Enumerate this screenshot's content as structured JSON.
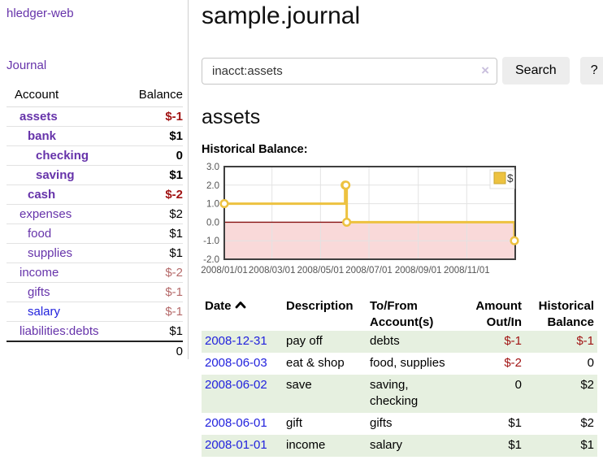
{
  "colors": {
    "link_purple": "#6633aa",
    "link_blue": "#2222dd",
    "negative_red": "#a11414",
    "negative_muted": "#b56a6a",
    "row_green": "#e6f0e0",
    "series_gold": "#edc240",
    "negative_area_pink": "#f9d9d9",
    "zero_line_red": "#871111"
  },
  "app": {
    "title": "hledger-web"
  },
  "nav": {
    "journal": "Journal"
  },
  "sidebar": {
    "headers": {
      "account": "Account",
      "balance": "Balance"
    },
    "accounts": [
      {
        "name": "assets",
        "depth": 0,
        "bold": true,
        "balance": "$-1",
        "balance_class": "neg"
      },
      {
        "name": "bank",
        "depth": 1,
        "bold": true,
        "balance": "$1",
        "balance_class": ""
      },
      {
        "name": "checking",
        "depth": 2,
        "bold": true,
        "balance": "0",
        "balance_class": ""
      },
      {
        "name": "saving",
        "depth": 2,
        "bold": true,
        "balance": "$1",
        "balance_class": ""
      },
      {
        "name": "cash",
        "depth": 1,
        "bold": true,
        "balance": "$-2",
        "balance_class": "neg"
      },
      {
        "name": "expenses",
        "depth": 0,
        "bold": false,
        "balance": "$2",
        "balance_class": ""
      },
      {
        "name": "food",
        "depth": 1,
        "bold": false,
        "balance": "$1",
        "balance_class": ""
      },
      {
        "name": "supplies",
        "depth": 1,
        "bold": false,
        "balance": "$1",
        "balance_class": ""
      },
      {
        "name": "income",
        "depth": 0,
        "bold": false,
        "balance": "$-2",
        "balance_class": "negmuted"
      },
      {
        "name": "gifts",
        "depth": 1,
        "bold": false,
        "balance": "$-1",
        "balance_class": "negmuted"
      },
      {
        "name": "salary",
        "depth": 1,
        "bold": false,
        "link": "blue",
        "balance": "$-1",
        "balance_class": "negmuted"
      },
      {
        "name": "liabilities:debts",
        "depth": 0,
        "bold": false,
        "balance": "$1",
        "balance_class": ""
      }
    ],
    "total": "0"
  },
  "header": {
    "title": "sample.journal"
  },
  "search": {
    "value": "inacct:assets",
    "clear_icon": "×",
    "button_label": "Search",
    "help_label": "?"
  },
  "account": {
    "title": "assets",
    "chart_label": "Historical Balance:"
  },
  "chart_data": {
    "type": "line",
    "style": "steps",
    "title": "Historical Balance:",
    "x_range": [
      "2008-01-01",
      "2009-01-01"
    ],
    "y_range": [
      -2,
      3
    ],
    "y_ticks": [
      3.0,
      2.0,
      1.0,
      0.0,
      -1.0,
      -2.0
    ],
    "x_tick_dates": [
      "2008-01-01",
      "2008-03-01",
      "2008-05-01",
      "2008-07-01",
      "2008-09-01",
      "2008-11-01"
    ],
    "x_tick_labels": [
      "2008/01/01",
      "2008/03/01",
      "2008/05/01",
      "2008/07/01",
      "2008/09/01",
      "2008/11/01"
    ],
    "grid": true,
    "legend": {
      "label": "$",
      "position": "top-right"
    },
    "series": [
      {
        "name": "$",
        "color": "#edc240",
        "marker_fill": "#ffffff",
        "points": [
          [
            "2008-01-01",
            1
          ],
          [
            "2008-06-01",
            2
          ],
          [
            "2008-06-02",
            2
          ],
          [
            "2008-06-03",
            0
          ],
          [
            "2008-12-31",
            -1
          ]
        ]
      }
    ],
    "negative_region": {
      "from": 0,
      "to": -2,
      "fill": "#f9d9d9",
      "line_color": "#871111"
    }
  },
  "register": {
    "headers": {
      "date": "Date",
      "description": "Description",
      "accounts": "To/From Account(s)",
      "amount": "Amount Out/In",
      "balance": "Historical Balance"
    },
    "rows": [
      {
        "date": "2008-12-31",
        "description": "pay off",
        "accounts": "debts",
        "amount": "$-1",
        "amount_class": "neg",
        "balance": "$-1",
        "balance_class": "neg"
      },
      {
        "date": "2008-06-03",
        "description": "eat & shop",
        "accounts": "food, supplies",
        "amount": "$-2",
        "amount_class": "neg",
        "balance": "0",
        "balance_class": ""
      },
      {
        "date": "2008-06-02",
        "description": "save",
        "accounts": "saving, checking",
        "amount": "0",
        "amount_class": "",
        "balance": "$2",
        "balance_class": ""
      },
      {
        "date": "2008-06-01",
        "description": "gift",
        "accounts": "gifts",
        "amount": "$1",
        "amount_class": "",
        "balance": "$2",
        "balance_class": ""
      },
      {
        "date": "2008-01-01",
        "description": "income",
        "accounts": "salary",
        "amount": "$1",
        "amount_class": "",
        "balance": "$1",
        "balance_class": ""
      }
    ]
  }
}
